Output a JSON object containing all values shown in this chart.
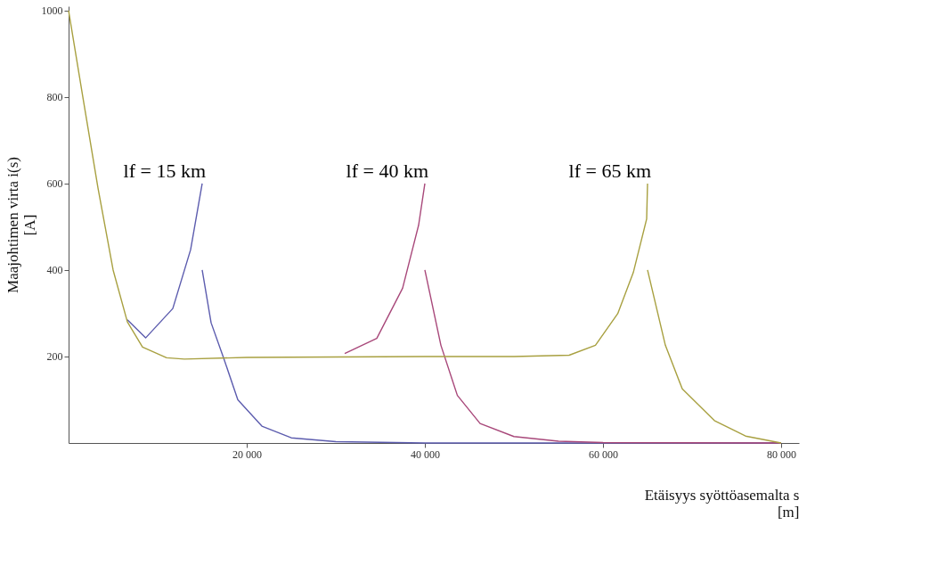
{
  "chart_data": {
    "type": "line",
    "xlabel": "Etäisyys syöttöasemalta s\n[m]",
    "ylabel": "Maajohtimen virta i(s)\n[A]",
    "xlim": [
      0,
      82000
    ],
    "ylim": [
      0,
      1010
    ],
    "xticks": [
      {
        "value": 20000,
        "label": "20 000"
      },
      {
        "value": 40000,
        "label": "40 000"
      },
      {
        "value": 60000,
        "label": "60 000"
      },
      {
        "value": 80000,
        "label": "80 000"
      }
    ],
    "yticks": [
      200,
      400,
      600,
      800,
      1000
    ],
    "grid": false,
    "legend": false,
    "line_style": "solid",
    "marker": "none",
    "series": [
      {
        "color": "#5c5cae",
        "x": [
          6600,
          8650,
          11700,
          13700,
          15000
        ],
        "values": [
          285,
          243,
          311,
          447,
          600
        ]
      },
      {
        "color": "#5c5cae",
        "x": [
          15000,
          16000,
          17400,
          19000,
          21700,
          25000,
          30000,
          40000,
          80000
        ],
        "values": [
          400,
          278,
          197,
          100,
          39,
          12,
          3,
          0,
          0
        ]
      },
      {
        "color": "#a8487a",
        "x": [
          31000,
          34600,
          37500,
          39300,
          40000
        ],
        "values": [
          207,
          242,
          358,
          504,
          600
        ]
      },
      {
        "color": "#a8487a",
        "x": [
          40000,
          41800,
          43650,
          46200,
          50000,
          55000,
          60000,
          80000
        ],
        "values": [
          400,
          226,
          110,
          45,
          15,
          4,
          1,
          0
        ]
      },
      {
        "color": "#a8a040",
        "x": [
          0,
          1600,
          3300,
          5000,
          6600,
          8300,
          11000,
          13000,
          20000,
          30000,
          40000,
          50000,
          56200,
          59150,
          61650,
          63400,
          64900,
          65000
        ],
        "values": [
          1000,
          800,
          590,
          400,
          280,
          222,
          197,
          194,
          198,
          199,
          200,
          200,
          203,
          226,
          299,
          394,
          518,
          600
        ]
      },
      {
        "color": "#a8a040",
        "x": [
          65000,
          67000,
          68900,
          72500,
          76000,
          80000
        ],
        "values": [
          400,
          226,
          125,
          52,
          16,
          0
        ]
      }
    ],
    "annotations": [
      "lf = 15 km",
      "lf = 40 km",
      "lf = 65 km"
    ]
  }
}
